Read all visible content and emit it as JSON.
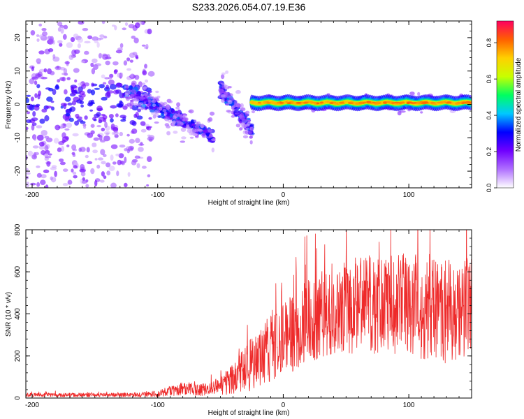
{
  "figure_title": "S233.2026.054.07.19.E36",
  "chart_data": [
    {
      "type": "heatmap",
      "title": "S233.2026.054.07.19.E36",
      "xlabel": "Height of straight line (km)",
      "ylabel": "Frequency (Hz)",
      "xlim": [
        -205,
        150
      ],
      "ylim": [
        -25,
        25
      ],
      "xticks": [
        -200,
        -100,
        0,
        100
      ],
      "yticks": [
        -20,
        -10,
        0,
        10,
        20
      ],
      "colorbar": {
        "label": "Normalized spectral amplitude",
        "range": [
          0.0,
          0.92
        ],
        "ticks": [
          0.0,
          0.2,
          0.4,
          0.6,
          0.8
        ],
        "colors": [
          "#ffffff",
          "#b070ff",
          "#7000ff",
          "#0000ff",
          "#00c8ff",
          "#00ff60",
          "#c8ff00",
          "#ffd000",
          "#ff6000",
          "#ff0060"
        ]
      },
      "features": [
        {
          "name": "scattered noise",
          "x_range": [
            -205,
            -120
          ],
          "freq_range": [
            -25,
            25
          ],
          "amplitude": 0.1
        },
        {
          "name": "descending branch",
          "x_range": [
            -125,
            -55
          ],
          "freq_start": 4,
          "freq_end": -10,
          "amplitude": 0.25
        },
        {
          "name": "second branch",
          "x_range": [
            -50,
            -25
          ],
          "freq_start": 5,
          "freq_end": -8,
          "amplitude": 0.25
        },
        {
          "name": "steady signal line",
          "x_range": [
            -25,
            150
          ],
          "freq": 0.5,
          "amplitude": 0.9
        }
      ]
    },
    {
      "type": "line",
      "xlabel": "Height of straight line (km)",
      "ylabel": "SNR (10 * v/v)",
      "xlim": [
        -205,
        150
      ],
      "ylim": [
        0,
        800
      ],
      "xticks": [
        -200,
        -100,
        0,
        100
      ],
      "yticks": [
        0,
        200,
        400,
        600,
        800
      ],
      "color": "#ee2a2a",
      "envelope": {
        "x": [
          -205,
          -160,
          -120,
          -100,
          -90,
          -80,
          -70,
          -60,
          -50,
          -40,
          -30,
          -25,
          -20,
          -15,
          -10,
          0,
          10,
          20,
          30,
          40,
          50,
          60,
          80,
          100,
          120,
          140,
          150
        ],
        "mean": [
          15,
          15,
          15,
          20,
          35,
          45,
          40,
          40,
          60,
          90,
          140,
          160,
          200,
          230,
          250,
          290,
          320,
          370,
          400,
          430,
          440,
          440,
          450,
          440,
          430,
          420,
          410
        ],
        "spread": [
          10,
          10,
          10,
          15,
          25,
          35,
          30,
          30,
          45,
          75,
          110,
          130,
          150,
          160,
          170,
          180,
          190,
          200,
          210,
          220,
          230,
          230,
          240,
          250,
          260,
          270,
          270
        ]
      }
    }
  ]
}
